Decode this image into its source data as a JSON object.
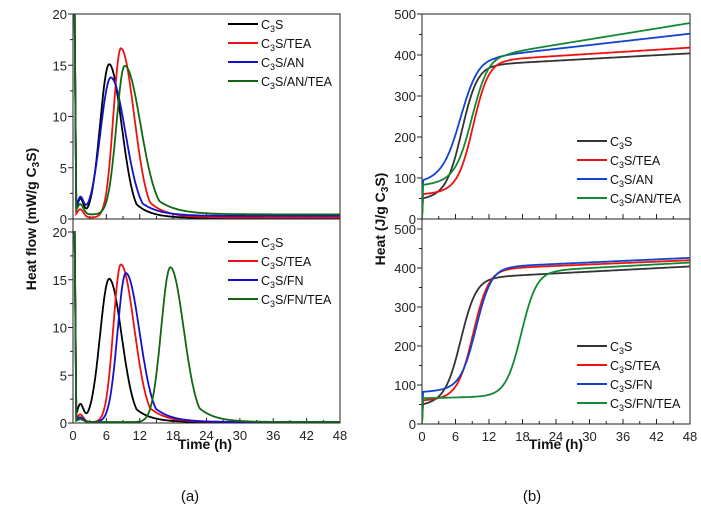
{
  "chart_data": [
    {
      "id": "a-top",
      "type": "line",
      "panel": "(a)",
      "xlabel": "Time (h)",
      "ylabel": "Heat flow (mW/g C3S)",
      "xlim": [
        0,
        48
      ],
      "ylim": [
        0,
        20
      ],
      "xticks": [
        "0",
        "6",
        "12",
        "18",
        "24",
        "30",
        "36",
        "42",
        "48"
      ],
      "yticks": [
        "0",
        "5",
        "10",
        "15",
        "20"
      ],
      "legend_position": "top-right",
      "series": [
        {
          "name": "C3S",
          "color": "#000000",
          "model": "peak",
          "peak_x": 6.5,
          "peak_y": 15.0,
          "width_left": 2.2,
          "width_right": 3.0,
          "induction_bump": 1.8,
          "tail": 0.1
        },
        {
          "name": "C3S/TEA",
          "color": "#ee1111",
          "model": "peak",
          "peak_x": 8.6,
          "peak_y": 16.5,
          "width_left": 1.8,
          "width_right": 3.2,
          "induction_bump": 0.8,
          "tail": 0.15
        },
        {
          "name": "C3S/AN",
          "color": "#1111cc",
          "model": "peak",
          "peak_x": 6.8,
          "peak_y": 13.5,
          "width_left": 2.5,
          "width_right": 3.5,
          "induction_bump": 1.7,
          "tail": 0.3
        },
        {
          "name": "C3S/AN/TEA",
          "color": "#116611",
          "model": "peak",
          "peak_x": 9.3,
          "peak_y": 14.5,
          "width_left": 2.0,
          "width_right": 3.8,
          "induction_bump": 1.0,
          "tail": 0.45
        }
      ]
    },
    {
      "id": "a-bottom",
      "type": "line",
      "panel": "(a)",
      "xlabel": "Time (h)",
      "ylabel": "Heat flow (mW/g C3S)",
      "xlim": [
        0,
        48
      ],
      "ylim": [
        0,
        20
      ],
      "xticks": [
        "0",
        "6",
        "12",
        "18",
        "24",
        "30",
        "36",
        "42",
        "48"
      ],
      "yticks": [
        "0",
        "5",
        "10",
        "15",
        "20"
      ],
      "legend_position": "top-right",
      "series": [
        {
          "name": "C3S",
          "color": "#000000",
          "model": "peak",
          "peak_x": 6.5,
          "peak_y": 15.0,
          "width_left": 2.2,
          "width_right": 3.0,
          "induction_bump": 1.8,
          "tail": 0.1
        },
        {
          "name": "C3S/TEA",
          "color": "#ee1111",
          "model": "peak",
          "peak_x": 8.6,
          "peak_y": 16.5,
          "width_left": 1.8,
          "width_right": 3.2,
          "induction_bump": 0.8,
          "tail": 0.1
        },
        {
          "name": "C3S/FN",
          "color": "#1111cc",
          "model": "peak",
          "peak_x": 9.5,
          "peak_y": 15.6,
          "width_left": 2.0,
          "width_right": 3.3,
          "induction_bump": 0.5,
          "tail": 0.1
        },
        {
          "name": "C3S/FN/TEA",
          "color": "#116611",
          "model": "peak",
          "peak_x": 17.5,
          "peak_y": 16.2,
          "width_left": 2.2,
          "width_right": 3.2,
          "induction_bump": 0.3,
          "tail": 0.1
        }
      ]
    },
    {
      "id": "b-top",
      "type": "line",
      "panel": "(b)",
      "xlabel": "Time (h)",
      "ylabel": "Heat (J/g C3S)",
      "xlim": [
        0,
        48
      ],
      "ylim": [
        0,
        500
      ],
      "xticks": [
        "0",
        "6",
        "12",
        "18",
        "24",
        "30",
        "36",
        "42",
        "48"
      ],
      "yticks": [
        "0",
        "100",
        "200",
        "300",
        "400",
        "500"
      ],
      "legend_position": "bottom-right",
      "series": [
        {
          "name": "C3S",
          "color": "#333333",
          "model": "sigmoid",
          "start": 48,
          "plateau_start": 60,
          "mid_x": 7.2,
          "steep": 1.4,
          "level": 378,
          "end": 404
        },
        {
          "name": "C3S/TEA",
          "color": "#ee1111",
          "model": "sigmoid",
          "start": 60,
          "plateau_start": 70,
          "mid_x": 9.2,
          "steep": 1.4,
          "level": 390,
          "end": 418
        },
        {
          "name": "C3S/AN",
          "color": "#1144cc",
          "model": "sigmoid",
          "start": 90,
          "plateau_start": 105,
          "mid_x": 7.0,
          "steep": 1.6,
          "level": 398,
          "end": 452
        },
        {
          "name": "C3S/AN/TEA",
          "color": "#118833",
          "model": "sigmoid",
          "start": 82,
          "plateau_start": 95,
          "mid_x": 9.0,
          "steep": 1.5,
          "level": 405,
          "end": 478
        }
      ]
    },
    {
      "id": "b-bottom",
      "type": "line",
      "panel": "(b)",
      "xlabel": "Time (h)",
      "ylabel": "Heat (J/g C3S)",
      "xlim": [
        0,
        48
      ],
      "ylim": [
        0,
        500
      ],
      "xticks": [
        "0",
        "6",
        "12",
        "18",
        "24",
        "30",
        "36",
        "42",
        "48"
      ],
      "yticks": [
        "0",
        "100",
        "200",
        "300",
        "400",
        "500"
      ],
      "legend_position": "bottom-right",
      "series": [
        {
          "name": "C3S",
          "color": "#333333",
          "model": "sigmoid",
          "start": 48,
          "plateau_start": 60,
          "mid_x": 7.0,
          "steep": 1.4,
          "level": 378,
          "end": 404
        },
        {
          "name": "C3S/TEA",
          "color": "#ee1111",
          "model": "sigmoid",
          "start": 60,
          "plateau_start": 68,
          "mid_x": 9.2,
          "steep": 1.4,
          "level": 400,
          "end": 420
        },
        {
          "name": "C3S/FN",
          "color": "#1144cc",
          "model": "sigmoid",
          "start": 82,
          "plateau_start": 90,
          "mid_x": 9.7,
          "steep": 1.4,
          "level": 405,
          "end": 426
        },
        {
          "name": "C3S/FN/TEA",
          "color": "#118833",
          "model": "sigmoid",
          "start": 66,
          "plateau_start": 72,
          "mid_x": 17.8,
          "steep": 1.4,
          "level": 395,
          "end": 414
        }
      ]
    }
  ],
  "captions": {
    "a": "(a)",
    "b": "(b)"
  },
  "labels": {
    "heat_flow_prefix": "Heat flow (mW/g C",
    "heat_prefix": "Heat (J/g C",
    "sub3": "3",
    "suffix": "S)",
    "time": "Time (h)"
  }
}
